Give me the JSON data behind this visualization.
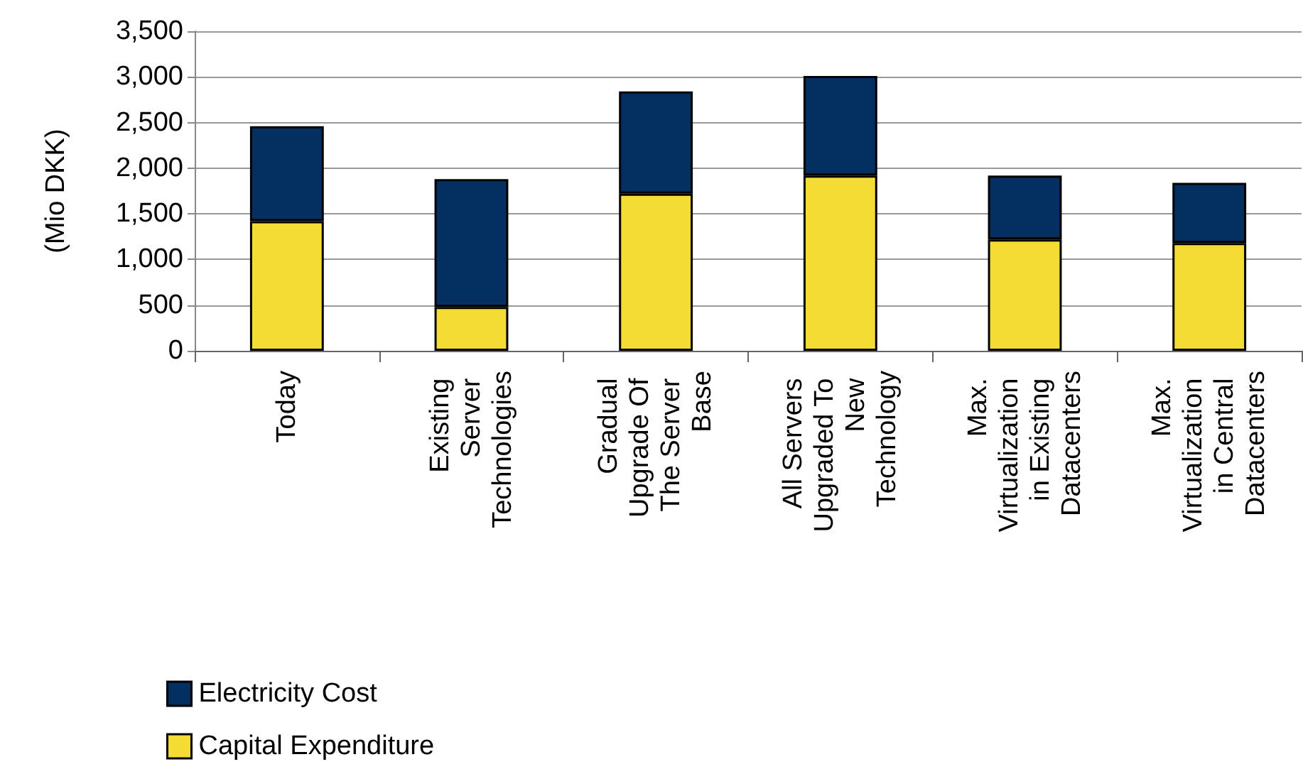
{
  "chart_data": {
    "type": "bar",
    "stacked": true,
    "ylabel": "(Mio DKK)",
    "categories": [
      "Today",
      "Existing Server Technologies",
      "Gradual Upgrade Of The Server Base",
      "All Servers Upgraded To New Technology",
      "Max. Virtualization in Existing Datacenters",
      "Max. Virtualization in Central Datacenters"
    ],
    "series": [
      {
        "name": "Capital Expenditure",
        "color": "#f5dc35",
        "values": [
          1420,
          480,
          1720,
          1920,
          1220,
          1180
        ]
      },
      {
        "name": "Electricity Cost",
        "color": "#033061",
        "values": [
          1040,
          1400,
          1120,
          1090,
          700,
          660
        ]
      }
    ],
    "ylim": [
      0,
      3500
    ],
    "yticks": [
      0,
      500,
      {
        "value": 1000,
        "label": "1,000"
      },
      {
        "value": 1500,
        "label": "1,500"
      },
      {
        "value": 2000,
        "label": "2,000"
      },
      {
        "value": 2500,
        "label": "2,500"
      },
      {
        "value": 3000,
        "label": "3,000"
      },
      {
        "value": 3500,
        "label": "3,500"
      }
    ],
    "grid": "y",
    "legend": "bottom left"
  }
}
